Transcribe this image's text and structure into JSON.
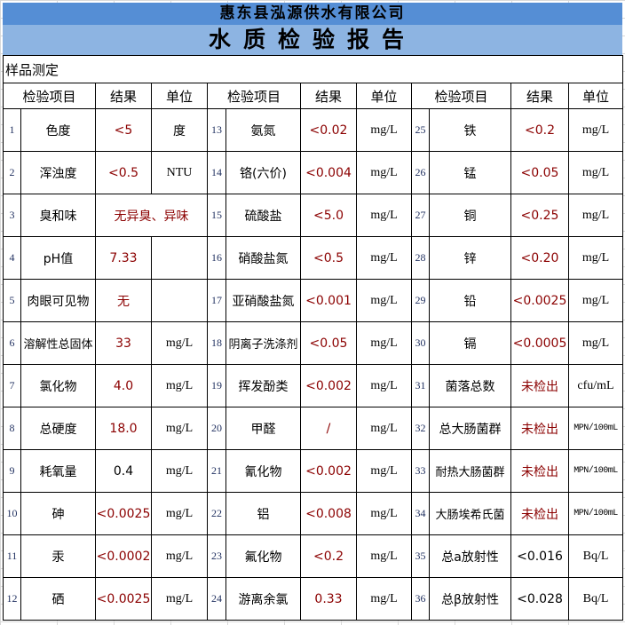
{
  "company": "惠东县泓源供水有限公司",
  "title": "水质检验报告",
  "sample_label": "样品测定",
  "headers": [
    "检验项目",
    "结果",
    "单位",
    "检验项目",
    "结果",
    "单位",
    "检验项目",
    "结果",
    "单位"
  ],
  "colors": {
    "company_bar": "#558ed5",
    "title_bar": "#8db4e2",
    "result_red": "#8b0000"
  },
  "rows": [
    [
      {
        "no": "1",
        "item": "色度",
        "result": "<5",
        "unit": "度",
        "red": true
      },
      {
        "no": "13",
        "item": "氨氮",
        "result": "<0.02",
        "unit": "mg/L",
        "red": true
      },
      {
        "no": "25",
        "item": "铁",
        "result": "<0.2",
        "unit": "mg/L",
        "red": true
      }
    ],
    [
      {
        "no": "2",
        "item": "浑浊度",
        "result": "<0.5",
        "unit": "NTU",
        "red": true
      },
      {
        "no": "14",
        "item": "铬(六价)",
        "result": "<0.004",
        "unit": "mg/L",
        "red": true
      },
      {
        "no": "26",
        "item": "锰",
        "result": "<0.05",
        "unit": "mg/L",
        "red": true
      }
    ],
    [
      {
        "no": "3",
        "item": "臭和味",
        "result": "无异臭、异味",
        "unit": null,
        "red": true,
        "span": true
      },
      {
        "no": "15",
        "item": "硫酸盐",
        "result": "<5.0",
        "unit": "mg/L",
        "red": true
      },
      {
        "no": "27",
        "item": "铜",
        "result": "<0.25",
        "unit": "mg/L",
        "red": true
      }
    ],
    [
      {
        "no": "4",
        "item": "pH值",
        "result": "7.33",
        "unit": "",
        "red": true
      },
      {
        "no": "16",
        "item": "硝酸盐氮",
        "result": "<0.5",
        "unit": "mg/L",
        "red": true
      },
      {
        "no": "28",
        "item": "锌",
        "result": "<0.20",
        "unit": "mg/L",
        "red": true
      }
    ],
    [
      {
        "no": "5",
        "item": "肉眼可见物",
        "result": "无",
        "unit": "",
        "red": true
      },
      {
        "no": "17",
        "item": "亚硝酸盐氮",
        "result": "<0.001",
        "unit": "mg/L",
        "red": true
      },
      {
        "no": "29",
        "item": "铅",
        "result": "<0.0025",
        "unit": "mg/L",
        "red": true
      }
    ],
    [
      {
        "no": "6",
        "item": "溶解性总固体",
        "result": "33",
        "unit": "mg/L",
        "red": true
      },
      {
        "no": "18",
        "item": "阴离子洗涤剂",
        "result": "<0.05",
        "unit": "mg/L",
        "red": true
      },
      {
        "no": "30",
        "item": "镉",
        "result": "<0.0005",
        "unit": "mg/L",
        "red": true
      }
    ],
    [
      {
        "no": "7",
        "item": "氯化物",
        "result": "4.0",
        "unit": "mg/L",
        "red": true
      },
      {
        "no": "19",
        "item": "挥发酚类",
        "result": "<0.002",
        "unit": "mg/L",
        "red": true
      },
      {
        "no": "31",
        "item": "菌落总数",
        "result": "未检出",
        "unit": "cfu/mL",
        "red": true
      }
    ],
    [
      {
        "no": "8",
        "item": "总硬度",
        "result": "18.0",
        "unit": "mg/L",
        "red": true
      },
      {
        "no": "20",
        "item": "甲醛",
        "result": "/",
        "unit": "mg/L",
        "red": true
      },
      {
        "no": "32",
        "item": "总大肠菌群",
        "result": "未检出",
        "unit": "MPN/100mL",
        "red": true
      }
    ],
    [
      {
        "no": "9",
        "item": "耗氧量",
        "result": "0.4",
        "unit": "mg/L",
        "red": false
      },
      {
        "no": "21",
        "item": "氰化物",
        "result": "<0.002",
        "unit": "mg/L",
        "red": true
      },
      {
        "no": "33",
        "item": "耐热大肠菌群",
        "result": "未检出",
        "unit": "MPN/100mL",
        "red": true
      }
    ],
    [
      {
        "no": "10",
        "item": "砷",
        "result": "<0.0025",
        "unit": "mg/L",
        "red": true
      },
      {
        "no": "22",
        "item": "铝",
        "result": "<0.008",
        "unit": "mg/L",
        "red": true
      },
      {
        "no": "34",
        "item": "大肠埃希氏菌",
        "result": "未检出",
        "unit": "MPN/100mL",
        "red": true
      }
    ],
    [
      {
        "no": "11",
        "item": "汞",
        "result": "<0.0002",
        "unit": "mg/L",
        "red": true
      },
      {
        "no": "23",
        "item": "氟化物",
        "result": "<0.2",
        "unit": "mg/L",
        "red": true
      },
      {
        "no": "35",
        "item": "总a放射性",
        "result": "<0.016",
        "unit": "Bq/L",
        "red": false
      }
    ],
    [
      {
        "no": "12",
        "item": "硒",
        "result": "<0.0025",
        "unit": "mg/L",
        "red": true
      },
      {
        "no": "24",
        "item": "游离余氯",
        "result": "0.33",
        "unit": "mg/L",
        "red": true
      },
      {
        "no": "36",
        "item": "总β放射性",
        "result": "<0.028",
        "unit": "Bq/L",
        "red": false
      }
    ]
  ]
}
